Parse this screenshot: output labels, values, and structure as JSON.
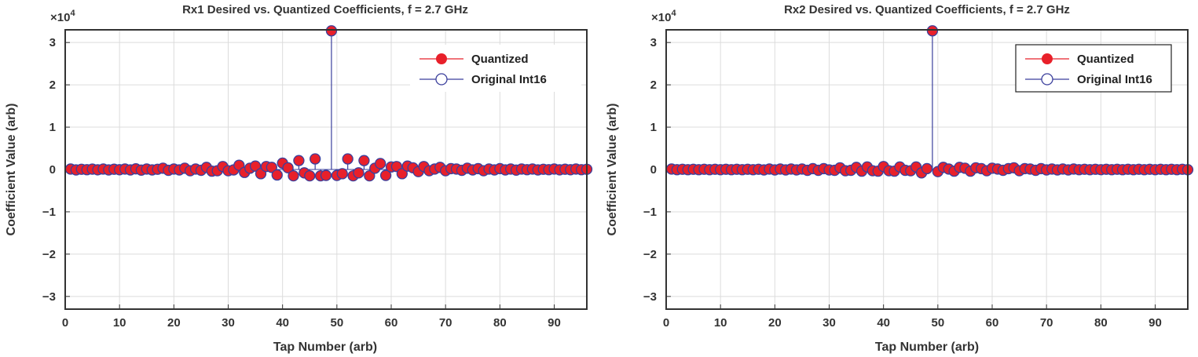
{
  "colors": {
    "quantized": "#e8202a",
    "original": "#3b3f9c",
    "grid": "#dcdcdc",
    "axis": "#333333"
  },
  "chart_data": [
    {
      "type": "stem",
      "title": "Rx1 Desired vs. Quantized Coefficients, f = 2.7 GHz",
      "xlabel": "Tap Number (arb)",
      "ylabel": "Coefficient Value (arb)",
      "y_multiplier": "×10",
      "y_multiplier_exp": "4",
      "xlim": [
        0,
        96
      ],
      "ylim": [
        -33000,
        33000
      ],
      "xticks": [
        0,
        10,
        20,
        30,
        40,
        50,
        60,
        70,
        80,
        90
      ],
      "yticks": [
        -30000,
        -20000,
        -10000,
        0,
        10000,
        20000,
        30000
      ],
      "ytick_labels": [
        "−3",
        "−2",
        "−1",
        "0",
        "1",
        "2",
        "3"
      ],
      "grid": true,
      "legend": {
        "placement": "top-right",
        "border": false,
        "entries": [
          "Quantized",
          "Original Int16"
        ]
      },
      "x": [
        1,
        2,
        3,
        4,
        5,
        6,
        7,
        8,
        9,
        10,
        11,
        12,
        13,
        14,
        15,
        16,
        17,
        18,
        19,
        20,
        21,
        22,
        23,
        24,
        25,
        26,
        27,
        28,
        29,
        30,
        31,
        32,
        33,
        34,
        35,
        36,
        37,
        38,
        39,
        40,
        41,
        42,
        43,
        44,
        45,
        46,
        47,
        48,
        49,
        50,
        51,
        52,
        53,
        54,
        55,
        56,
        57,
        58,
        59,
        60,
        61,
        62,
        63,
        64,
        65,
        66,
        67,
        68,
        69,
        70,
        71,
        72,
        73,
        74,
        75,
        76,
        77,
        78,
        79,
        80,
        81,
        82,
        83,
        84,
        85,
        86,
        87,
        88,
        89,
        90,
        91,
        92,
        93,
        94,
        95,
        96
      ],
      "series": [
        {
          "name": "Quantized",
          "values": [
            100,
            -100,
            50,
            -50,
            80,
            -80,
            100,
            -100,
            60,
            -60,
            100,
            -100,
            150,
            -150,
            100,
            -100,
            50,
            300,
            -200,
            100,
            -100,
            300,
            -300,
            100,
            -200,
            500,
            -400,
            -300,
            700,
            -300,
            -100,
            1000,
            -700,
            300,
            800,
            -1000,
            700,
            500,
            -1300,
            1500,
            400,
            -1500,
            2100,
            -800,
            -1500,
            2500,
            -1500,
            -1400,
            32767,
            -1400,
            -1000,
            2500,
            -1500,
            -800,
            2100,
            -1500,
            300,
            1400,
            -1400,
            600,
            700,
            -1000,
            800,
            400,
            -500,
            700,
            -300,
            100,
            500,
            -300,
            200,
            100,
            -200,
            300,
            -100,
            200,
            -300,
            100,
            -100,
            200,
            -100,
            100,
            -150,
            100,
            -50,
            100,
            -100,
            50,
            -50,
            100,
            -80,
            60,
            -60,
            100,
            -50,
            50
          ]
        },
        {
          "name": "Original Int16",
          "values": [
            100,
            -100,
            50,
            -50,
            80,
            -80,
            100,
            -100,
            60,
            -60,
            100,
            -100,
            150,
            -150,
            100,
            -100,
            50,
            300,
            -200,
            100,
            -100,
            300,
            -300,
            100,
            -200,
            500,
            -400,
            -300,
            700,
            -300,
            -100,
            1000,
            -700,
            300,
            800,
            -1000,
            700,
            500,
            -1300,
            1500,
            400,
            -1500,
            2100,
            -800,
            -1500,
            2500,
            -1500,
            -1400,
            32767,
            -1400,
            -1000,
            2500,
            -1500,
            -800,
            2100,
            -1500,
            300,
            1400,
            -1400,
            600,
            700,
            -1000,
            800,
            400,
            -500,
            700,
            -300,
            100,
            500,
            -300,
            200,
            100,
            -200,
            300,
            -100,
            200,
            -300,
            100,
            -100,
            200,
            -100,
            100,
            -150,
            100,
            -50,
            100,
            -100,
            50,
            -50,
            100,
            -80,
            60,
            -60,
            100,
            -50,
            50
          ]
        }
      ]
    },
    {
      "type": "stem",
      "title": "Rx2 Desired vs. Quantized Coefficients, f = 2.7 GHz",
      "xlabel": "Tap Number (arb)",
      "ylabel": "Coefficient Value (arb)",
      "y_multiplier": "×10",
      "y_multiplier_exp": "4",
      "xlim": [
        0,
        96
      ],
      "ylim": [
        -33000,
        33000
      ],
      "xticks": [
        0,
        10,
        20,
        30,
        40,
        50,
        60,
        70,
        80,
        90
      ],
      "yticks": [
        -30000,
        -20000,
        -10000,
        0,
        10000,
        20000,
        30000
      ],
      "ytick_labels": [
        "−3",
        "−2",
        "−1",
        "0",
        "1",
        "2",
        "3"
      ],
      "grid": true,
      "legend": {
        "placement": "top-right",
        "border": true,
        "entries": [
          "Quantized",
          "Original Int16"
        ]
      },
      "x": [
        1,
        2,
        3,
        4,
        5,
        6,
        7,
        8,
        9,
        10,
        11,
        12,
        13,
        14,
        15,
        16,
        17,
        18,
        19,
        20,
        21,
        22,
        23,
        24,
        25,
        26,
        27,
        28,
        29,
        30,
        31,
        32,
        33,
        34,
        35,
        36,
        37,
        38,
        39,
        40,
        41,
        42,
        43,
        44,
        45,
        46,
        47,
        48,
        49,
        50,
        51,
        52,
        53,
        54,
        55,
        56,
        57,
        58,
        59,
        60,
        61,
        62,
        63,
        64,
        65,
        66,
        67,
        68,
        69,
        70,
        71,
        72,
        73,
        74,
        75,
        76,
        77,
        78,
        79,
        80,
        81,
        82,
        83,
        84,
        85,
        86,
        87,
        88,
        89,
        90,
        91,
        92,
        93,
        94,
        95,
        96
      ],
      "series": [
        {
          "name": "Quantized",
          "values": [
            100,
            -50,
            50,
            -50,
            50,
            -50,
            50,
            -50,
            50,
            -50,
            50,
            -50,
            50,
            -50,
            50,
            -50,
            50,
            -100,
            100,
            -100,
            100,
            -100,
            100,
            -100,
            100,
            -200,
            200,
            -200,
            200,
            -100,
            -200,
            400,
            -300,
            -200,
            500,
            -400,
            600,
            -300,
            -400,
            700,
            -300,
            -400,
            600,
            -200,
            -300,
            600,
            -800,
            200,
            32767,
            -500,
            500,
            100,
            -400,
            500,
            300,
            -400,
            400,
            200,
            -300,
            300,
            100,
            -200,
            200,
            400,
            -300,
            200,
            100,
            -200,
            200,
            -100,
            100,
            -100,
            100,
            -100,
            100,
            -50,
            50,
            -50,
            50,
            -50,
            50,
            -50,
            50,
            -50,
            50,
            -50,
            50,
            -50,
            50,
            -50,
            50,
            -50,
            50,
            -50,
            50,
            -50
          ]
        },
        {
          "name": "Original Int16",
          "values": [
            100,
            -50,
            50,
            -50,
            50,
            -50,
            50,
            -50,
            50,
            -50,
            50,
            -50,
            50,
            -50,
            50,
            -50,
            50,
            -100,
            100,
            -100,
            100,
            -100,
            100,
            -100,
            100,
            -200,
            200,
            -200,
            200,
            -100,
            -200,
            400,
            -300,
            -200,
            500,
            -400,
            600,
            -300,
            -400,
            700,
            -300,
            -400,
            600,
            -200,
            -300,
            600,
            -800,
            200,
            32767,
            -500,
            500,
            100,
            -400,
            500,
            300,
            -400,
            400,
            200,
            -300,
            300,
            100,
            -200,
            200,
            400,
            -300,
            200,
            100,
            -200,
            200,
            -100,
            100,
            -100,
            100,
            -100,
            100,
            -50,
            50,
            -50,
            50,
            -50,
            50,
            -50,
            50,
            -50,
            50,
            -50,
            50,
            -50,
            50,
            -50,
            50,
            -50,
            50,
            -50,
            50,
            -50
          ]
        }
      ]
    }
  ]
}
